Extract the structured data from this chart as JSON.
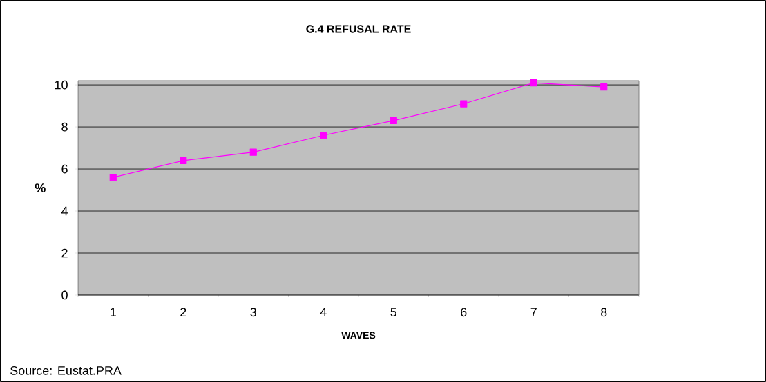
{
  "chart_data": {
    "type": "line",
    "title": "G.4 REFUSAL RATE",
    "xlabel": "WAVES",
    "ylabel": "%",
    "categories": [
      "1",
      "2",
      "3",
      "4",
      "5",
      "6",
      "7",
      "8"
    ],
    "values": [
      5.6,
      6.4,
      6.8,
      7.6,
      8.3,
      9.1,
      10.1,
      9.9
    ],
    "color": "#ff00ff",
    "marker": "square",
    "line_style": "solid",
    "ylim": [
      0,
      10.2
    ],
    "yticks": [
      0,
      2,
      4,
      6,
      8,
      10
    ],
    "grid": "y",
    "annotations": [
      "Source: Eustat.PRA"
    ]
  }
}
